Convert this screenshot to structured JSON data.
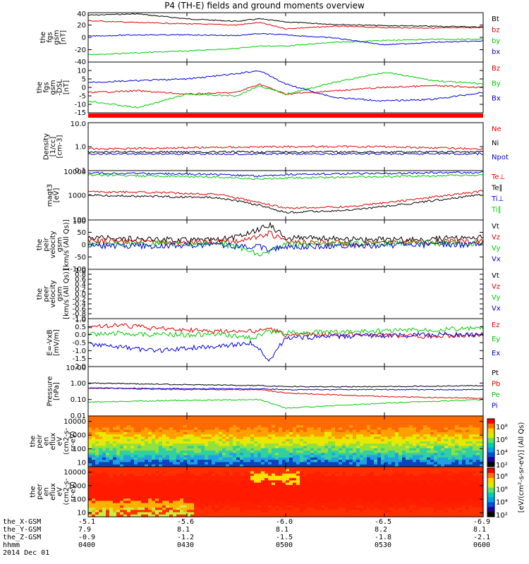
{
  "title": "P4 (TH-E) fields and ground moments overview",
  "footer": {
    "row_labels": [
      "the_X-GSM",
      "the_Y-GSM",
      "the_Z-GSM",
      "hhmm",
      "2014 Dec 01"
    ],
    "columns": [
      {
        "x": "-5.1",
        "y": "7.9",
        "z": "-0.9",
        "t": "0400"
      },
      {
        "x": "-5.6",
        "y": "8.1",
        "z": "-1.2",
        "t": "0430"
      },
      {
        "x": "-6.0",
        "y": "8.1",
        "z": "-1.5",
        "t": "0500"
      },
      {
        "x": "-6.5",
        "y": "8.2",
        "z": "-1.8",
        "t": "0530"
      },
      {
        "x": "-6.9",
        "y": "8.1",
        "z": "-2.1",
        "t": "0600"
      }
    ]
  },
  "colors": {
    "black": "#000000",
    "red": "#e00000",
    "green": "#00cc00",
    "blue": "#0000dd"
  },
  "chart_data": [
    {
      "type": "line",
      "id": "fgs_gsm",
      "ylabel": [
        "the",
        "fgs",
        "gsm",
        "[nT]"
      ],
      "ylim": [
        -40,
        40
      ],
      "ticks": [
        "40",
        "20",
        "0",
        "-20",
        "-40"
      ],
      "tickvals": [
        40,
        20,
        0,
        -20,
        -40
      ],
      "x": [
        "0400",
        "0415",
        "0430",
        "0445",
        "0452",
        "0500",
        "0515",
        "0530",
        "0545",
        "0600"
      ],
      "series": [
        {
          "name": "Bt",
          "color": "black",
          "values": [
            36,
            38,
            30,
            26,
            30,
            25,
            21,
            19,
            18,
            17
          ]
        },
        {
          "name": "bz",
          "color": "red",
          "values": [
            27,
            24,
            22,
            20,
            24,
            14,
            18,
            16,
            15,
            16
          ]
        },
        {
          "name": "by",
          "color": "green",
          "values": [
            -28,
            -25,
            -22,
            -18,
            -14,
            -14,
            -8,
            -5,
            -3,
            -3
          ]
        },
        {
          "name": "bx",
          "color": "blue",
          "values": [
            2,
            4,
            4,
            3,
            6,
            4,
            -1,
            -12,
            -8,
            -6
          ]
        }
      ]
    },
    {
      "type": "line",
      "id": "fgs_dsl",
      "ylabel": [
        "the",
        "fgs",
        "gsm",
        "-DSL",
        "[nT]"
      ],
      "ylim": [
        -15,
        15
      ],
      "ticks": [
        "10",
        "5",
        "0",
        "-5",
        "-10",
        "-15"
      ],
      "tickvals": [
        10,
        5,
        0,
        -5,
        -10,
        -15
      ],
      "x": [
        "0400",
        "0415",
        "0430",
        "0445",
        "0452",
        "0500",
        "0515",
        "0530",
        "0545",
        "0600"
      ],
      "series": [
        {
          "name": "Bz",
          "color": "red",
          "values": [
            -3,
            -2,
            -4,
            -3,
            2,
            -4,
            -2,
            0,
            1,
            0
          ]
        },
        {
          "name": "By",
          "color": "green",
          "values": [
            -8,
            -12,
            -4,
            -5,
            1,
            -4,
            3,
            9,
            4,
            2
          ]
        },
        {
          "name": "Bx",
          "color": "blue",
          "values": [
            3,
            4,
            5,
            8,
            10,
            2,
            -6,
            -8,
            -7,
            -3
          ]
        }
      ]
    },
    {
      "type": "line",
      "id": "density",
      "log": true,
      "ylabel": [
        "Density",
        "[1/cc]",
        "[cm-3]"
      ],
      "ylim": [
        0.1,
        10
      ],
      "ticks": [
        "10.0",
        "1.0",
        "0.1"
      ],
      "tickvals": [
        10,
        1,
        0.1
      ],
      "x": [
        "0400",
        "0430",
        "0500",
        "0530",
        "0600"
      ],
      "series": [
        {
          "name": "Ne",
          "color": "red",
          "values": [
            0.8,
            0.9,
            1.0,
            1.0,
            0.8
          ]
        },
        {
          "name": "Ni",
          "color": "black",
          "values": [
            0.6,
            0.6,
            0.6,
            0.6,
            0.6
          ]
        },
        {
          "name": "Npot",
          "color": "blue",
          "values": [
            0.5,
            0.5,
            0.5,
            0.5,
            0.5
          ]
        }
      ]
    },
    {
      "type": "line",
      "id": "temperature",
      "log": true,
      "ylabel": [
        "magt3",
        "[eV]"
      ],
      "ylim": [
        100,
        10000
      ],
      "ticks": [
        "10000",
        "1000",
        "100"
      ],
      "tickvals": [
        10000,
        1000,
        100
      ],
      "x": [
        "0400",
        "0420",
        "0440",
        "0452",
        "0500",
        "0520",
        "0540",
        "0600"
      ],
      "series": [
        {
          "name": "Te⊥",
          "color": "red",
          "values": [
            1400,
            1300,
            1100,
            500,
            300,
            350,
            700,
            1500
          ]
        },
        {
          "name": "Te∥",
          "color": "black",
          "values": [
            1000,
            900,
            800,
            400,
            200,
            250,
            500,
            1100
          ]
        },
        {
          "name": "Ti⊥",
          "color": "blue",
          "values": [
            8000,
            7500,
            7000,
            6000,
            7000,
            7500,
            8000,
            8500
          ]
        },
        {
          "name": "Ti∥",
          "color": "green",
          "values": [
            6500,
            6000,
            5500,
            4500,
            5000,
            5500,
            6000,
            6500
          ]
        }
      ]
    },
    {
      "type": "line",
      "id": "peir_velocity",
      "ylabel": [
        "the",
        "peir",
        "velocity",
        "gsm",
        "[km/s (All Qs)]"
      ],
      "ylim": [
        -100,
        100
      ],
      "ticks": [
        "100",
        "50",
        "0",
        "-50",
        "-100"
      ],
      "tickvals": [
        100,
        50,
        0,
        -50,
        -100
      ],
      "x": [
        "0400",
        "0420",
        "0440",
        "0448",
        "0452",
        "0455",
        "0500",
        "0520",
        "0540",
        "0600"
      ],
      "series": [
        {
          "name": "Vt",
          "color": "black",
          "values": [
            30,
            20,
            20,
            40,
            60,
            80,
            30,
            20,
            20,
            30
          ]
        },
        {
          "name": "Vz",
          "color": "red",
          "values": [
            15,
            10,
            10,
            20,
            30,
            50,
            10,
            5,
            10,
            15
          ]
        },
        {
          "name": "Vy",
          "color": "green",
          "values": [
            0,
            5,
            5,
            -20,
            -40,
            -30,
            0,
            5,
            5,
            5
          ]
        },
        {
          "name": "Vx",
          "color": "blue",
          "values": [
            -5,
            -5,
            0,
            -10,
            -5,
            -20,
            -10,
            -5,
            0,
            0
          ]
        }
      ]
    },
    {
      "type": "line",
      "id": "peer_velocity",
      "ylabel": [
        "the",
        "peer",
        "velocity",
        "gsm",
        "[km/s (All Qs)]"
      ],
      "ylim": [
        -1,
        1
      ],
      "ticks": [
        "1.0",
        "0.8",
        "0.6",
        "0.4",
        "0.2",
        "0.0",
        "-0.2",
        "-0.4",
        "-0.6",
        "-0.8",
        "-1.0"
      ],
      "tickvals": [
        1.0,
        0.8,
        0.6,
        0.4,
        0.2,
        0.0,
        -0.2,
        -0.4,
        -0.6,
        -0.8,
        -1.0
      ],
      "x": [],
      "series": [
        {
          "name": "Vt",
          "color": "black",
          "values": []
        },
        {
          "name": "Vz",
          "color": "red",
          "values": []
        },
        {
          "name": "Vy",
          "color": "green",
          "values": []
        },
        {
          "name": "Vx",
          "color": "blue",
          "values": []
        }
      ]
    },
    {
      "type": "line",
      "id": "efield",
      "ylabel": [
        "E=-VxB",
        "[mV/m]"
      ],
      "ylim": [
        -2,
        1
      ],
      "ticks": [
        "1.0",
        "0.5",
        "0.0",
        "-0.5",
        "-1.0",
        "-1.5",
        "-2.0"
      ],
      "tickvals": [
        1.0,
        0.5,
        0.0,
        -0.5,
        -1.0,
        -1.5,
        -2.0
      ],
      "x": [
        "0400",
        "0410",
        "0420",
        "0440",
        "0450",
        "0455",
        "0500",
        "0520",
        "0540",
        "0600"
      ],
      "series": [
        {
          "name": "Ez",
          "color": "red",
          "values": [
            0.5,
            0.6,
            0.4,
            0.2,
            0.2,
            0.4,
            0.0,
            0.0,
            -0.1,
            0.0
          ]
        },
        {
          "name": "Ey",
          "color": "green",
          "values": [
            0.0,
            0.1,
            0.0,
            0.0,
            -0.2,
            0.2,
            0.1,
            0.2,
            0.3,
            0.4
          ]
        },
        {
          "name": "Ex",
          "color": "blue",
          "values": [
            -0.6,
            -0.8,
            -1.0,
            -0.7,
            -0.5,
            -1.6,
            -0.2,
            -0.1,
            0.0,
            0.0
          ]
        }
      ]
    },
    {
      "type": "line",
      "id": "pressure",
      "log": true,
      "ylabel": [
        "Pressure",
        "[nPa]"
      ],
      "ylim": [
        0.01,
        10
      ],
      "ticks": [
        "10.00",
        "1.00",
        "0.10",
        "0.01"
      ],
      "tickvals": [
        10,
        1,
        0.1,
        0.01
      ],
      "x": [
        "0400",
        "0430",
        "0452",
        "0500",
        "0530",
        "0600"
      ],
      "series": [
        {
          "name": "Pt",
          "color": "black",
          "values": [
            1.0,
            0.8,
            0.7,
            0.6,
            0.6,
            0.7
          ]
        },
        {
          "name": "Pb",
          "color": "red",
          "values": [
            0.5,
            0.4,
            0.4,
            0.25,
            0.15,
            0.12
          ]
        },
        {
          "name": "Pe",
          "color": "green",
          "values": [
            0.07,
            0.09,
            0.1,
            0.03,
            0.06,
            0.1
          ]
        },
        {
          "name": "Pi",
          "color": "blue",
          "values": [
            0.5,
            0.45,
            0.45,
            0.4,
            0.4,
            0.4
          ]
        }
      ]
    },
    {
      "type": "heatmap",
      "id": "peir_en_eflux",
      "log": true,
      "ylabel": [
        "the",
        "peir",
        "en",
        "eflux",
        "eV",
        "(cm2-s-",
        "sr-eV)"
      ],
      "ylim": [
        5,
        25000
      ],
      "ticks": [
        "10000",
        "1000",
        "100",
        "10"
      ],
      "tickvals": [
        10000,
        1000,
        100,
        10
      ],
      "x": [
        "0400",
        "0430",
        "0500",
        "0530",
        "0600"
      ],
      "y": [
        10,
        100,
        1000,
        10000
      ],
      "z": [
        [
          10000.0,
          10000.0,
          10000.0,
          10000.0,
          10000.0
        ],
        [
          100000.0,
          100000.0,
          100000.0,
          100000.0,
          100000.0
        ],
        [
          1000000.0,
          1000000.0,
          1000000.0,
          1000000.0,
          1000000.0
        ],
        [
          3000000.0,
          3000000.0,
          4000000.0,
          3000000.0,
          3000000.0
        ]
      ]
    },
    {
      "type": "heatmap",
      "id": "peer_en_eflux",
      "log": true,
      "ylabel": [
        "the",
        "peer",
        "en",
        "eflux",
        "eV",
        "(cm2-s-",
        "sr-eV)"
      ],
      "ylim": [
        5,
        25000
      ],
      "ticks": [
        "10000",
        "1000",
        "100",
        "10"
      ],
      "tickvals": [
        10000,
        1000,
        100,
        10
      ],
      "x": [
        "0400",
        "0430",
        "0500",
        "0530",
        "0600"
      ],
      "y": [
        10,
        100,
        1000,
        10000
      ],
      "z": [
        [
          10000000.0,
          20000000.0,
          20000000.0,
          20000000.0,
          20000000.0
        ],
        [
          100000000.0,
          100000000.0,
          100000000.0,
          100000000.0,
          100000000.0
        ],
        [
          100000000.0,
          100000000.0,
          100000000.0,
          100000000.0,
          100000000.0
        ],
        [
          10000000.0,
          10000000.0,
          30000000.0,
          10000000.0,
          10000000.0
        ]
      ]
    }
  ],
  "colorbar": {
    "label": "[eV/(cm²-s-sr-eV)] (All Qs)",
    "ticks_top": [
      "10⁸",
      "10⁶",
      "10⁴",
      "10²"
    ],
    "ticks_bottom": [
      "10⁸",
      "10⁶",
      "10⁴",
      "10²"
    ]
  }
}
